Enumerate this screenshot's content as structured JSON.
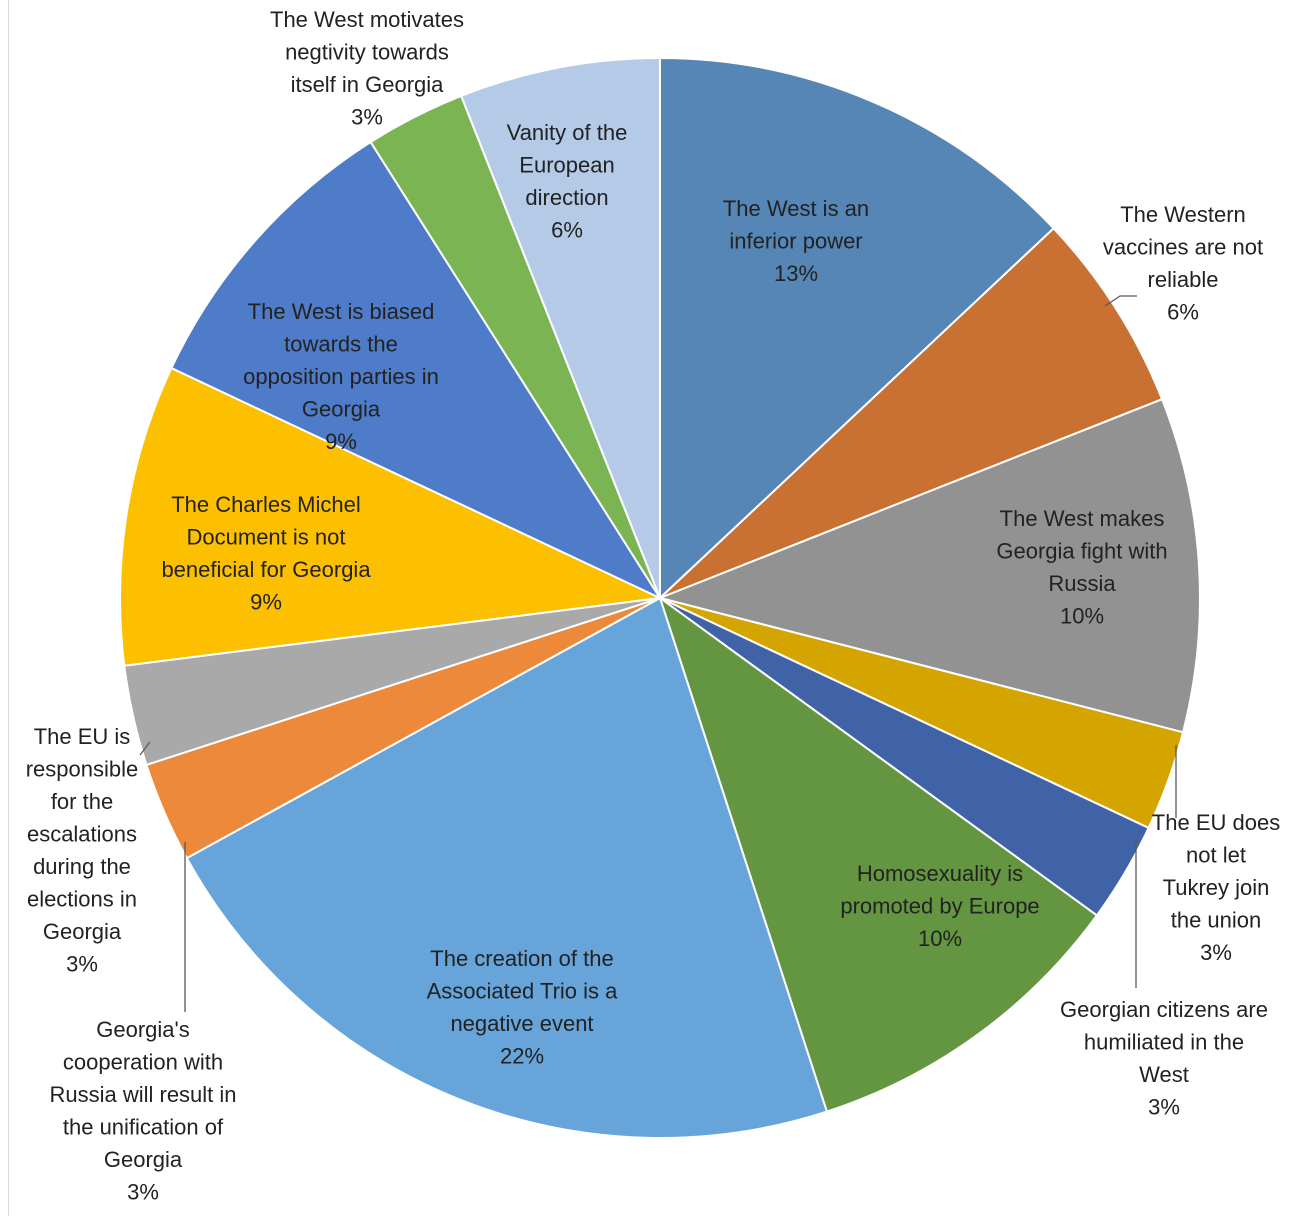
{
  "chart_data": {
    "type": "pie",
    "slices": [
      {
        "label": "The West is an inferior power",
        "value": 13,
        "value_label": "13%",
        "color": "#5586b6",
        "label_lines": [
          "The West is an",
          "inferior power"
        ]
      },
      {
        "label": "The Western vaccines are not reliable",
        "value": 6,
        "value_label": "6%",
        "color": "#c97132",
        "label_lines": [
          "The Western",
          "vaccines are not",
          "reliable"
        ]
      },
      {
        "label": "The West makes Georgia fight with Russia",
        "value": 10,
        "value_label": "10%",
        "color": "#929292",
        "label_lines": [
          "The West makes",
          "Georgia fight with",
          "Russia"
        ]
      },
      {
        "label": "The EU does not let Tukrey join the union",
        "value": 3,
        "value_label": "3%",
        "color": "#d4a400",
        "label_lines": [
          "The EU does",
          "not let",
          "Tukrey join",
          "the union"
        ]
      },
      {
        "label": "Georgian citizens are humiliated in the West",
        "value": 3,
        "value_label": "3%",
        "color": "#3f63a6",
        "label_lines": [
          "Georgian citizens are",
          "humiliated in the",
          "West"
        ]
      },
      {
        "label": "Homosexuality is promoted by Europe",
        "value": 10,
        "value_label": "10%",
        "color": "#649641",
        "label_lines": [
          "Homosexuality is",
          "promoted by Europe"
        ]
      },
      {
        "label": "The creation of the Associated Trio is a negative event",
        "value": 22,
        "value_label": "22%",
        "color": "#67a4d9",
        "label_lines": [
          "The creation of the",
          "Associated Trio is a",
          "negative event"
        ]
      },
      {
        "label": "Georgia's cooperation with Russia will result in the unification of Georgia",
        "value": 3,
        "value_label": "3%",
        "color": "#ec893b",
        "label_lines": [
          "Georgia's",
          "cooperation with",
          "Russia will result in",
          "the unification of",
          "Georgia"
        ]
      },
      {
        "label": "The EU is responsible for the escalations during the elections in Georgia",
        "value": 3,
        "value_label": "3%",
        "color": "#a9a9a9",
        "label_lines": [
          "The EU is",
          "responsible",
          "for the",
          "escalations",
          "during the",
          "elections in",
          "Georgia"
        ]
      },
      {
        "label": "The Charles Michel Document is not beneficial for Georgia",
        "value": 9,
        "value_label": "9%",
        "color": "#fcc000",
        "label_lines": [
          "The Charles Michel",
          "Document is not",
          "beneficial for Georgia"
        ]
      },
      {
        "label": "The West is biased towards the opposition parties in Georgia",
        "value": 9,
        "value_label": "9%",
        "color": "#4f7cc9",
        "label_lines": [
          "The West is biased",
          "towards the",
          "opposition parties in",
          "Georgia"
        ]
      },
      {
        "label": "The West motivates negtivity towards itself in Georgia",
        "value": 3,
        "value_label": "3%",
        "color": "#7bb452",
        "label_lines": [
          "The West motivates",
          "negtivity towards",
          "itself in Georgia"
        ]
      },
      {
        "label": "Vanity of the European direction",
        "value": 6,
        "value_label": "6%",
        "color": "#b5cae7",
        "label_lines": [
          "Vanity of the",
          "European",
          "direction"
        ]
      }
    ],
    "legend": "none",
    "start": "top",
    "direction": "clockwise"
  }
}
